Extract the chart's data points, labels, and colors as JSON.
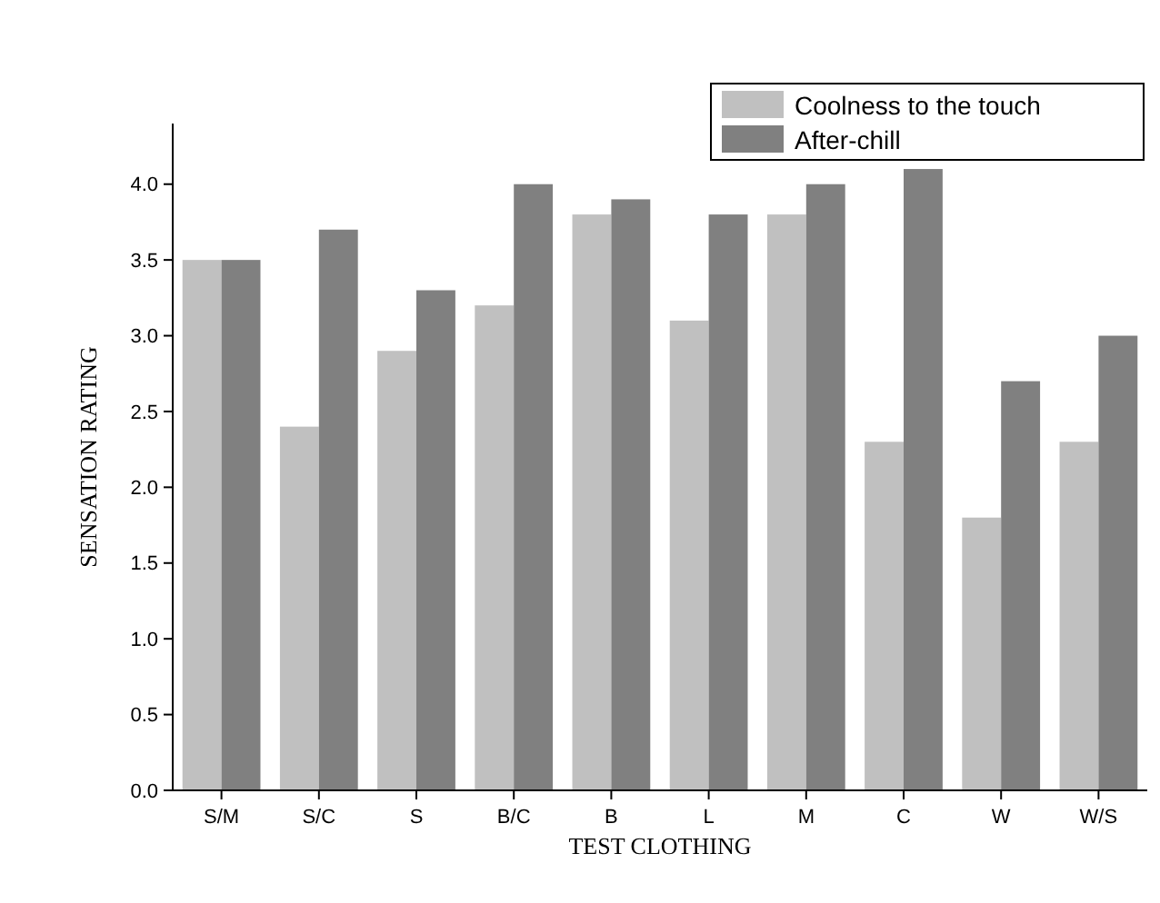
{
  "chart_data": {
    "type": "bar",
    "xlabel": "TEST CLOTHING",
    "ylabel": "SENSATION RATING",
    "categories": [
      "S/M",
      "S/C",
      "S",
      "B/C",
      "B",
      "L",
      "M",
      "C",
      "W",
      "W/S"
    ],
    "series": [
      {
        "name": "Coolness to the touch",
        "color": "#c0c0c0",
        "values": [
          3.5,
          2.4,
          2.9,
          3.2,
          3.8,
          3.1,
          3.8,
          2.3,
          1.8,
          2.3
        ]
      },
      {
        "name": "After-chill",
        "color": "#808080",
        "values": [
          3.5,
          3.7,
          3.3,
          4.0,
          3.9,
          3.8,
          4.0,
          4.1,
          2.7,
          3.0
        ]
      }
    ],
    "ylim": [
      0,
      4.4
    ],
    "yticks": [
      {
        "value": 0,
        "label": "0.0"
      },
      0.5,
      {
        "value": 1,
        "label": "1.0"
      },
      1.5,
      {
        "value": 2,
        "label": "2.0"
      },
      2.5,
      {
        "value": 3,
        "label": "3.0"
      },
      3.5,
      {
        "value": 4,
        "label": "4.0"
      }
    ],
    "legend": "top right",
    "grid": false
  }
}
